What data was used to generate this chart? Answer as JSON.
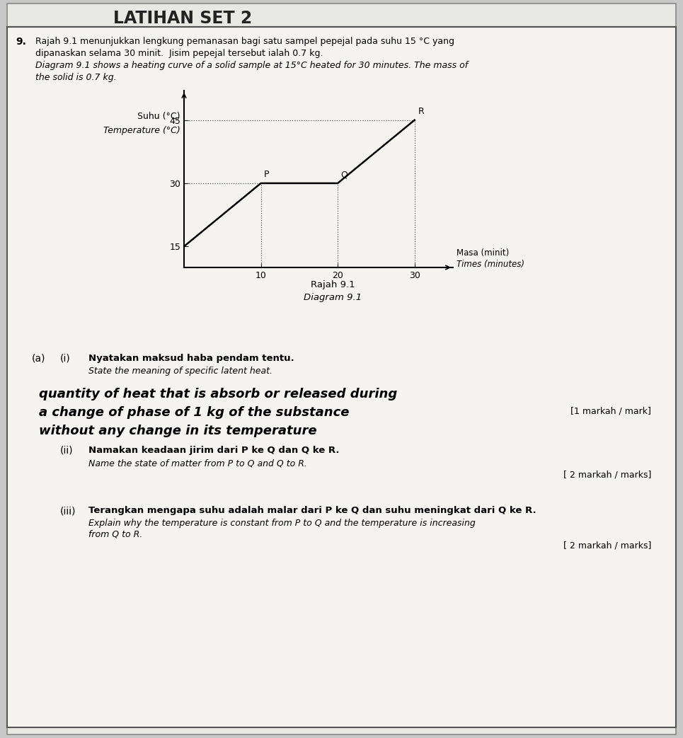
{
  "question_number": "9.",
  "question_text_ms": "Rajah 9.1 menunjukkan lengkung pemanasan bagi satu sampel pepejal pada suhu 15 °C yang\ndipanaskan selama 30 minit.  Jisim pepejal tersebut ialah 0.7 kg.",
  "question_text_en": "Diagram 9.1 shows a heating curve of a solid sample at 15°C heated for 30 minutes. The mass of\nthe solid is 0.7 kg.",
  "graph": {
    "xlabel_ms": "Masa (minit)",
    "xlabel_en": "Times (minutes)",
    "ylabel_ms": "Suhu (°C)",
    "ylabel_en": "Temperature (°C)",
    "x_ticks": [
      10,
      20,
      30
    ],
    "y_ticks": [
      15,
      30,
      45
    ],
    "xlim": [
      0,
      35
    ],
    "ylim": [
      10,
      52
    ],
    "curve_x": [
      0,
      10,
      20,
      30
    ],
    "curve_y": [
      15,
      30,
      30,
      45
    ],
    "points": {
      "P": [
        10,
        30
      ],
      "Q": [
        20,
        30
      ],
      "R": [
        30,
        45
      ]
    },
    "dotted_lines": [
      {
        "x1": 0,
        "y1": 30,
        "x2": 10,
        "y2": 30
      },
      {
        "x1": 10,
        "y1": 10,
        "x2": 10,
        "y2": 30
      },
      {
        "x1": 0,
        "y1": 45,
        "x2": 30,
        "y2": 45
      },
      {
        "x1": 20,
        "y1": 10,
        "x2": 20,
        "y2": 30
      },
      {
        "x1": 30,
        "y1": 10,
        "x2": 30,
        "y2": 45
      }
    ],
    "diagram_label_ms": "Rajah 9.1",
    "diagram_label_en": "Diagram 9.1"
  },
  "part_a": {
    "label": "(a)",
    "sub_i": {
      "label": "(i)",
      "text_ms": "Nyatakan maksud haba pendam tentu.",
      "text_en": "State the meaning of specific latent heat.",
      "answer_line1": "quantity of heat that is absorb or released during",
      "answer_line2": "a change of phase of 1 kg of the substance",
      "answer_line3": "without any change in its temperature",
      "marks": "[1 markah / mark]"
    },
    "sub_ii": {
      "label": "(ii)",
      "text_ms": "Namakan keadaan jirim dari P ke Q dan Q ke R.",
      "text_en": "Name the state of matter from P to Q and Q to R.",
      "marks": "[ 2 markah / marks]"
    },
    "sub_iii": {
      "label": "(iii)",
      "text_ms": "Terangkan mengapa suhu adalah malar dari P ke Q dan suhu meningkat dari Q ke R.",
      "text_en": "Explain why the temperature is constant from P to Q and the temperature is increasing\nfrom Q to R.",
      "marks": "[ 2 markah / marks]"
    }
  },
  "bg_color": "#c8c8c8",
  "paper_color": "#e8e8e4",
  "box_color": "#f0efeb",
  "header_text": "LATIHAN SET 2"
}
